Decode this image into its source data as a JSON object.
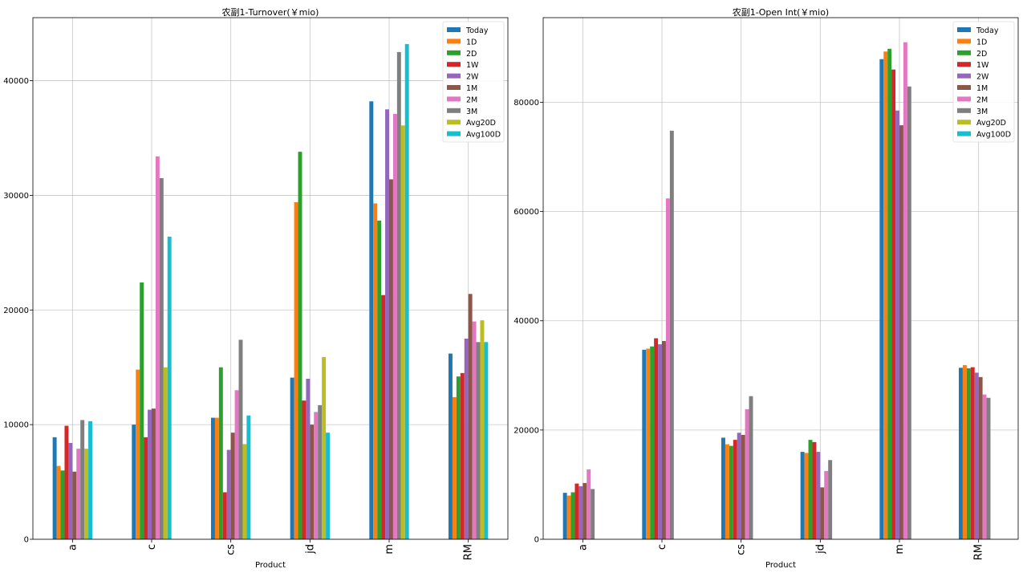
{
  "chart_data": [
    {
      "type": "bar",
      "title": "农副1-Turnover(￥mio)",
      "xlabel": "Product",
      "ylabel": "",
      "categories": [
        "a",
        "c",
        "cs",
        "jd",
        "m",
        "RM"
      ],
      "ylim": [
        0,
        45500
      ],
      "yticks": [
        0,
        10000,
        20000,
        30000,
        40000
      ],
      "grid": true,
      "legend_position": "top-right",
      "series": [
        {
          "name": "Today",
          "color": "#1f77b4",
          "values": [
            8900,
            10000,
            10600,
            14100,
            38200,
            16200
          ]
        },
        {
          "name": "1D",
          "color": "#ff7f0e",
          "values": [
            6400,
            14800,
            10600,
            29400,
            29300,
            12400
          ]
        },
        {
          "name": "2D",
          "color": "#2ca02c",
          "values": [
            6000,
            22400,
            15000,
            33800,
            27800,
            14200
          ]
        },
        {
          "name": "1W",
          "color": "#d62728",
          "values": [
            9900,
            8900,
            4100,
            12100,
            21300,
            14500
          ]
        },
        {
          "name": "2W",
          "color": "#9467bd",
          "values": [
            8400,
            11300,
            7800,
            14000,
            37500,
            17500
          ]
        },
        {
          "name": "1M",
          "color": "#8c564b",
          "values": [
            5900,
            11400,
            9300,
            10000,
            31400,
            21400
          ]
        },
        {
          "name": "2M",
          "color": "#e377c2",
          "values": [
            7900,
            33400,
            13000,
            11100,
            37100,
            19000
          ]
        },
        {
          "name": "3M",
          "color": "#7f7f7f",
          "values": [
            10400,
            31500,
            17400,
            11700,
            42500,
            17200
          ]
        },
        {
          "name": "Avg20D",
          "color": "#bcbd22",
          "values": [
            7900,
            15000,
            8300,
            15900,
            36100,
            19100
          ]
        },
        {
          "name": "Avg100D",
          "color": "#17becf",
          "values": [
            10300,
            26400,
            10800,
            9300,
            43200,
            17200
          ]
        }
      ]
    },
    {
      "type": "bar",
      "title": "农副1-Open Int(￥mio)",
      "xlabel": "Product",
      "ylabel": "",
      "categories": [
        "a",
        "c",
        "cs",
        "jd",
        "m",
        "RM"
      ],
      "ylim": [
        0,
        95500
      ],
      "yticks": [
        0,
        20000,
        40000,
        60000,
        80000
      ],
      "grid": true,
      "legend_position": "top-right",
      "series": [
        {
          "name": "Today",
          "color": "#1f77b4",
          "values": [
            8500,
            34700,
            18600,
            16000,
            87900,
            31400
          ]
        },
        {
          "name": "1D",
          "color": "#ff7f0e",
          "values": [
            8000,
            34900,
            17400,
            15800,
            89300,
            31900
          ]
        },
        {
          "name": "2D",
          "color": "#2ca02c",
          "values": [
            8600,
            35300,
            17100,
            18200,
            89800,
            31300
          ]
        },
        {
          "name": "1W",
          "color": "#d62728",
          "values": [
            10200,
            36800,
            18200,
            17800,
            86000,
            31500
          ]
        },
        {
          "name": "2W",
          "color": "#9467bd",
          "values": [
            9700,
            35700,
            19500,
            16000,
            78500,
            30500
          ]
        },
        {
          "name": "1M",
          "color": "#8c564b",
          "values": [
            10300,
            36300,
            19100,
            9500,
            75800,
            29700
          ]
        },
        {
          "name": "2M",
          "color": "#e377c2",
          "values": [
            12800,
            62400,
            23800,
            12500,
            91000,
            26500
          ]
        },
        {
          "name": "3M",
          "color": "#7f7f7f",
          "values": [
            9200,
            74800,
            26200,
            14500,
            82900,
            25900
          ]
        },
        {
          "name": "Avg20D",
          "color": "#bcbd22",
          "values": [
            0,
            0,
            0,
            0,
            0,
            0
          ]
        },
        {
          "name": "Avg100D",
          "color": "#17becf",
          "values": [
            0,
            0,
            0,
            0,
            0,
            0
          ]
        }
      ]
    }
  ]
}
